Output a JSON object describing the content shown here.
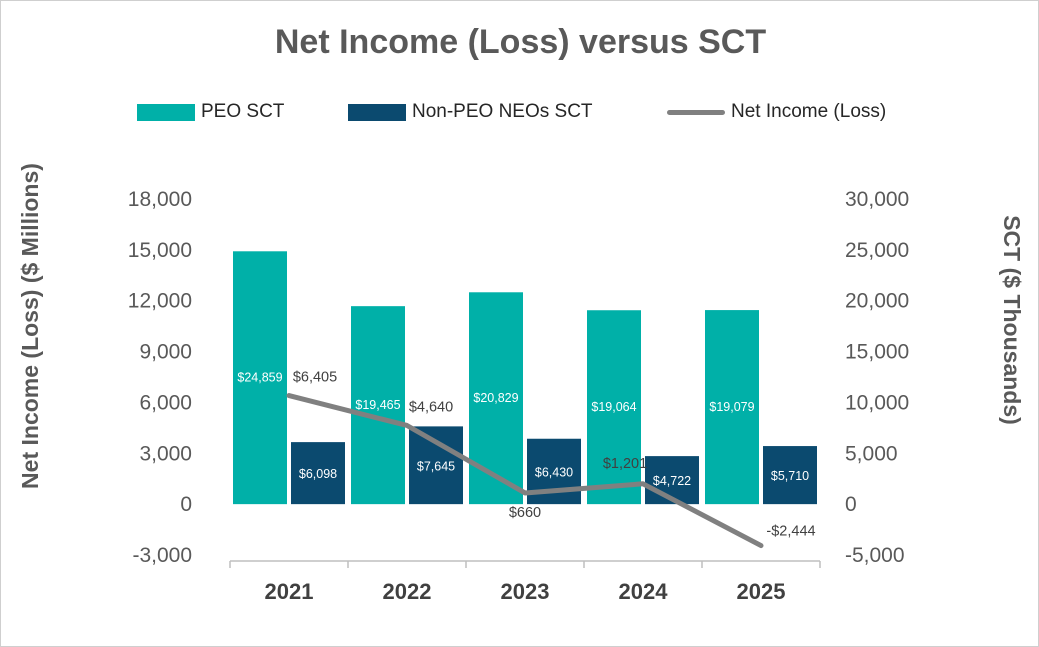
{
  "chart_data": {
    "type": "bar",
    "title": "Net Income (Loss) versus SCT",
    "categories": [
      "2021",
      "2022",
      "2023",
      "2024",
      "2025"
    ],
    "y_left_label": "Net Income (Loss) ($ Millions)",
    "y_right_label": "SCT ($ Thousands)",
    "y_left_range": [
      -3000,
      18000
    ],
    "y_right_range": [
      -5000,
      30000
    ],
    "y_left_ticks": [
      "18,000",
      "15,000",
      "12,000",
      "9,000",
      "6,000",
      "3,000",
      "0",
      "-3,000"
    ],
    "y_right_ticks": [
      "30,000",
      "25,000",
      "20,000",
      "15,000",
      "10,000",
      "5,000",
      "0",
      "-5,000"
    ],
    "legend_position": "top",
    "gridlines": false,
    "series": [
      {
        "name": "PEO SCT",
        "type": "bar",
        "axis": "right",
        "color": "#00B0A8",
        "values": [
          24859,
          19465,
          20829,
          19064,
          19079
        ],
        "labels": [
          "$24,859",
          "$19,465",
          "$20,829",
          "$19,064",
          "$19,079"
        ]
      },
      {
        "name": "Non-PEO NEOs SCT",
        "type": "bar",
        "axis": "right",
        "color": "#0B4A6F",
        "values": [
          6098,
          7645,
          6430,
          4722,
          5710
        ],
        "labels": [
          "$6,098",
          "$7,645",
          "$6,430",
          "$4,722",
          "$5,710"
        ]
      },
      {
        "name": "Net Income (Loss)",
        "type": "line",
        "axis": "left",
        "color": "#808080",
        "values": [
          6405,
          4640,
          660,
          1201,
          -2444
        ],
        "labels": [
          "$6,405",
          "$4,640",
          "$660",
          "$1,201",
          "-$2,444"
        ]
      }
    ]
  }
}
